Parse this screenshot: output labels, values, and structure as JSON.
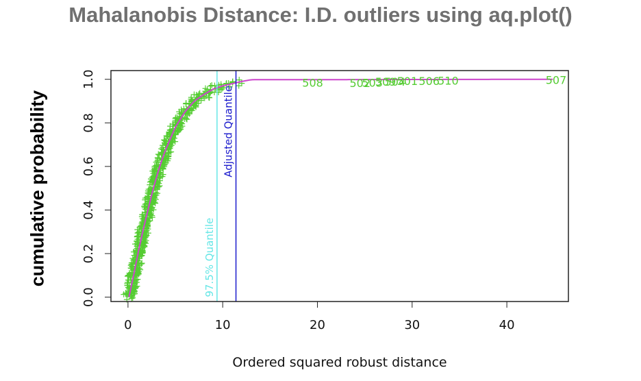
{
  "title": "Mahalanobis Distance: I.D. outliers using aq.plot()",
  "ylabel_outer": "cumulative probability",
  "colors": {
    "points": "#55cc33",
    "curve": "#cc44cc",
    "quantile_975": "#66e6e6",
    "adjusted_quantile": "#1a1acc",
    "frame": "#222222"
  },
  "chart_data": {
    "type": "scatter",
    "title": "",
    "xlabel": "Ordered squared robust distance",
    "ylabel": "cumulative probability",
    "xlim": [
      -1.8,
      46.5
    ],
    "ylim": [
      -0.02,
      1.04
    ],
    "xticks": [
      0,
      10,
      20,
      30,
      40
    ],
    "yticks": [
      0.0,
      0.2,
      0.4,
      0.6,
      0.8,
      1.0
    ],
    "ytick_labels": [
      "0.0",
      "0.2",
      "0.4",
      "0.6",
      "0.8",
      "1.0"
    ],
    "grid": false,
    "curve": {
      "x": [
        0.1,
        0.5,
        1.0,
        1.5,
        2.0,
        2.5,
        3.0,
        3.5,
        4.0,
        5.0,
        6.0,
        7.0,
        8.0,
        9.0,
        10.0,
        11.0,
        12.0,
        13.0,
        45.0
      ],
      "y": [
        0.0,
        0.08,
        0.19,
        0.29,
        0.38,
        0.47,
        0.55,
        0.62,
        0.68,
        0.78,
        0.85,
        0.9,
        0.93,
        0.955,
        0.97,
        0.98,
        0.99,
        0.998,
        1.0
      ]
    },
    "vertical_lines": [
      {
        "name": "97.5% Quantile",
        "x": 9.4
      },
      {
        "name": "Adjusted Quantile",
        "x": 11.4
      }
    ],
    "outlier_labels": [
      {
        "label": "508",
        "x": 19.5,
        "y": 0.985
      },
      {
        "label": "502",
        "x": 24.5,
        "y": 0.983
      },
      {
        "label": "503",
        "x": 25.8,
        "y": 0.985
      },
      {
        "label": "509",
        "x": 27.2,
        "y": 0.989
      },
      {
        "label": "504",
        "x": 28.2,
        "y": 0.99
      },
      {
        "label": "501",
        "x": 29.5,
        "y": 0.993
      },
      {
        "label": "506",
        "x": 31.8,
        "y": 0.993
      },
      {
        "label": "510",
        "x": 33.8,
        "y": 0.994
      },
      {
        "label": "507",
        "x": 45.2,
        "y": 0.998
      }
    ]
  }
}
